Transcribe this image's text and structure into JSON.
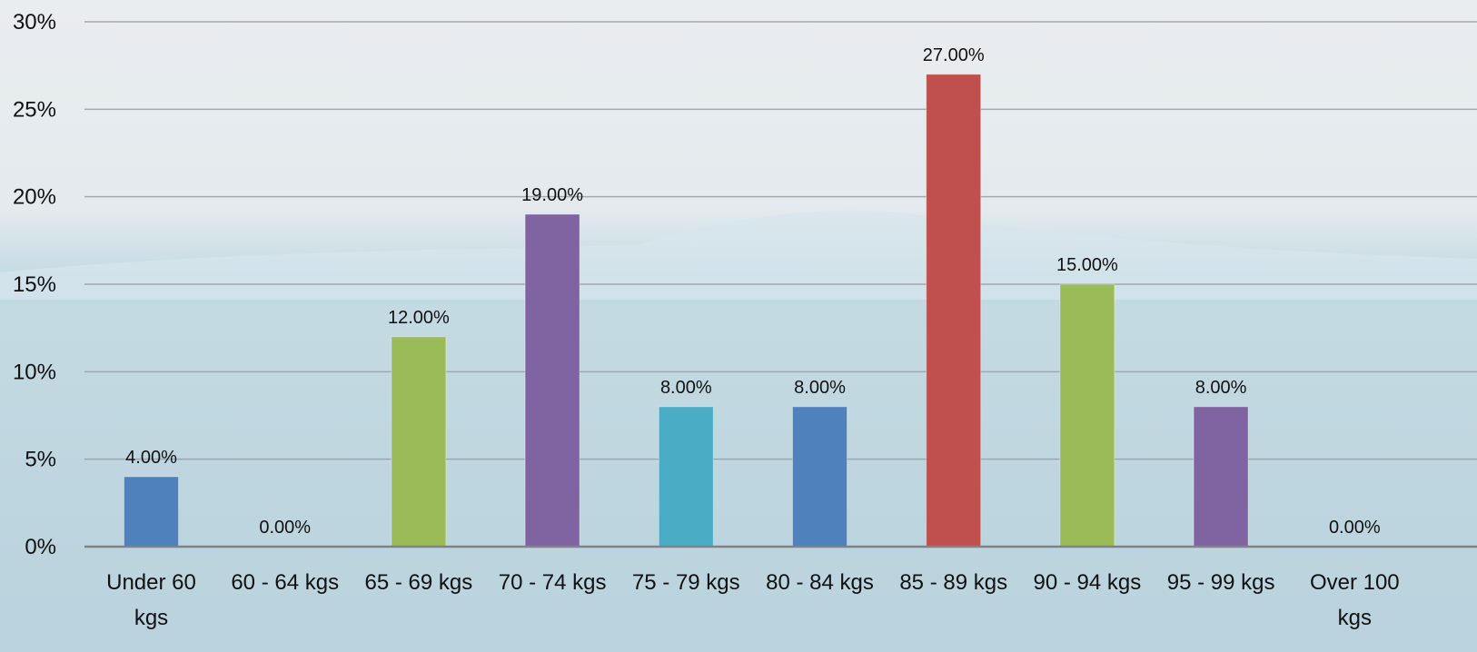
{
  "chart_data": {
    "type": "bar",
    "categories": [
      "Under 60 kgs",
      "60 - 64 kgs",
      "65 - 69 kgs",
      "70 - 74 kgs",
      "75 - 79 kgs",
      "80 - 84 kgs",
      "85 - 89 kgs",
      "90 - 94 kgs",
      "95 - 99 kgs",
      "Over 100 kgs"
    ],
    "category_lines": [
      [
        "Under 60",
        "kgs"
      ],
      [
        "60 - 64 kgs"
      ],
      [
        "65 - 69 kgs"
      ],
      [
        "70 - 74 kgs"
      ],
      [
        "75 - 79 kgs"
      ],
      [
        "80 - 84 kgs"
      ],
      [
        "85 - 89 kgs"
      ],
      [
        "90 - 94 kgs"
      ],
      [
        "95 - 99 kgs"
      ],
      [
        "Over 100",
        "kgs"
      ]
    ],
    "values": [
      4,
      0,
      12,
      19,
      8,
      8,
      27,
      15,
      8,
      0
    ],
    "data_labels": [
      "4.00%",
      "0.00%",
      "12.00%",
      "19.00%",
      "8.00%",
      "8.00%",
      "27.00%",
      "15.00%",
      "8.00%",
      "0.00%"
    ],
    "bar_colors": [
      "#4f81bd",
      "#c0504d",
      "#9bbb59",
      "#8064a2",
      "#4bacc6",
      "#4f81bd",
      "#c0504d",
      "#9bbb59",
      "#8064a2",
      "#4bacc6"
    ],
    "y_ticks": [
      "0%",
      "5%",
      "10%",
      "15%",
      "20%",
      "25%",
      "30%"
    ],
    "ylim": [
      0,
      30
    ],
    "grid": true,
    "title": "",
    "xlabel": "",
    "ylabel": ""
  }
}
